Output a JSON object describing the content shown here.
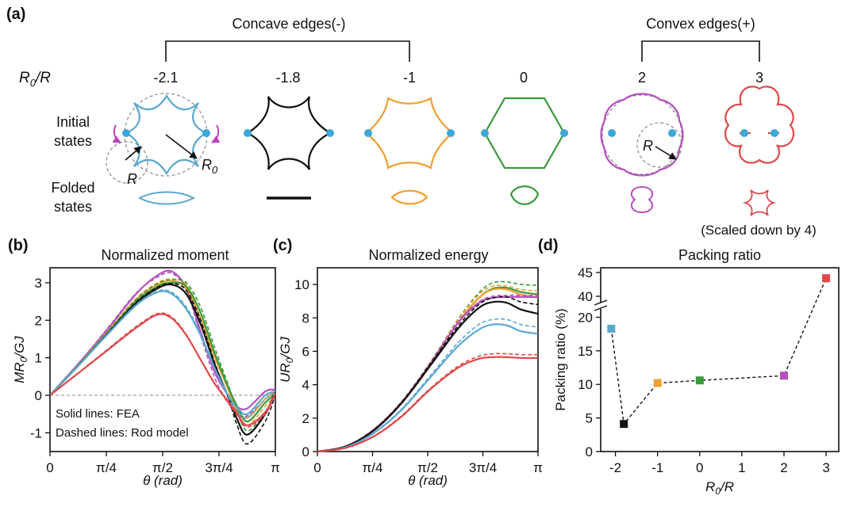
{
  "panel_a": {
    "label": "(a)",
    "groups": [
      {
        "label": "Concave edges(-)"
      },
      {
        "label": "Convex edges(+)"
      }
    ],
    "ratio_label": "R0/R",
    "ratio_main": "R",
    "ratio_sub": "0",
    "ratio_tail": "/R",
    "ratios": [
      "-2.1",
      "-1.8",
      "-1",
      "0",
      "2",
      "3"
    ],
    "row_initial": [
      "Initial",
      "states"
    ],
    "row_folded": [
      "Folded",
      "states"
    ],
    "annot_R": "R",
    "annot_R0_main": "R",
    "annot_R0_sub": "0",
    "annot_convex_R": "R",
    "scaled_note": "(Scaled down by 4)",
    "colors": [
      "#5aa8d0",
      "#111111",
      "#f0a030",
      "#3a9a3a",
      "#b550c0",
      "#e04848"
    ],
    "accent_magenta": "#c040c0",
    "dot_color": "#3aa8d8"
  },
  "chart_data": [
    {
      "id": "b",
      "type": "line",
      "label": "(b)",
      "title": "Normalized moment",
      "xlabel": "θ (rad)",
      "ylabel_main": "MR",
      "ylabel_sub": "0",
      "ylabel_tail": "/GJ",
      "x_ticks": [
        "0",
        "π/4",
        "π/2",
        "3π/4",
        "π"
      ],
      "xlim": [
        0,
        3.1416
      ],
      "ylim": [
        -1.5,
        3.4
      ],
      "y_ticks": [
        "3",
        "2",
        "1",
        "0",
        "-1"
      ],
      "legend_notes": [
        "Solid lines: FEA",
        "Dashed lines: Rod model"
      ],
      "series": [
        {
          "color": "#b550c0",
          "x": [
            0,
            0.4,
            0.8,
            1.2,
            1.5,
            1.7,
            1.9,
            2.1,
            2.3,
            2.5,
            2.6,
            2.75,
            3.0,
            3.14
          ],
          "solid": [
            0,
            0.85,
            1.75,
            2.7,
            3.2,
            3.3,
            2.85,
            1.7,
            0.6,
            -0.05,
            -0.3,
            -0.35,
            0.1,
            0.15
          ],
          "dashed": [
            0,
            0.85,
            1.78,
            2.72,
            3.15,
            3.25,
            2.8,
            1.6,
            0.45,
            -0.25,
            -0.5,
            -0.55,
            -0.1,
            0.1
          ]
        },
        {
          "color": "#f0a030",
          "x": [
            0,
            0.4,
            0.8,
            1.2,
            1.5,
            1.7,
            1.9,
            2.1,
            2.3,
            2.5,
            2.6,
            2.75,
            3.0,
            3.14
          ],
          "solid": [
            0,
            0.82,
            1.68,
            2.55,
            2.95,
            3.05,
            2.85,
            2.05,
            1.0,
            0.1,
            -0.35,
            -0.6,
            -0.1,
            0.1
          ],
          "dashed": [
            0,
            0.83,
            1.7,
            2.58,
            3.0,
            3.1,
            2.95,
            2.2,
            1.1,
            0.05,
            -0.45,
            -0.8,
            -0.3,
            0.0
          ]
        },
        {
          "color": "#3a9a3a",
          "x": [
            0,
            0.4,
            0.8,
            1.2,
            1.5,
            1.7,
            1.9,
            2.1,
            2.3,
            2.5,
            2.6,
            2.75,
            3.0,
            3.14
          ],
          "solid": [
            0,
            0.81,
            1.65,
            2.5,
            2.9,
            3.0,
            2.9,
            2.2,
            1.1,
            0.15,
            -0.25,
            -0.7,
            -0.2,
            0.05
          ],
          "dashed": [
            0,
            0.82,
            1.68,
            2.55,
            2.98,
            3.08,
            3.0,
            2.35,
            1.25,
            0.2,
            -0.35,
            -0.95,
            -0.45,
            0.0
          ]
        },
        {
          "color": "#111111",
          "x": [
            0,
            0.4,
            0.8,
            1.2,
            1.5,
            1.7,
            1.9,
            2.1,
            2.3,
            2.5,
            2.6,
            2.75,
            3.0,
            3.14
          ],
          "solid": [
            0,
            0.8,
            1.63,
            2.45,
            2.85,
            2.95,
            2.7,
            1.9,
            0.8,
            -0.1,
            -0.6,
            -1.05,
            -0.5,
            0.1
          ],
          "dashed": [
            0,
            0.8,
            1.65,
            2.48,
            2.88,
            2.98,
            2.8,
            2.0,
            0.85,
            -0.15,
            -0.75,
            -1.3,
            -0.7,
            0.0
          ]
        },
        {
          "color": "#5aa8d0",
          "x": [
            0,
            0.4,
            0.8,
            1.2,
            1.5,
            1.7,
            1.9,
            2.1,
            2.3,
            2.5,
            2.6,
            2.75,
            3.0,
            3.14
          ],
          "solid": [
            0,
            0.8,
            1.62,
            2.4,
            2.75,
            2.7,
            2.3,
            1.6,
            0.7,
            -0.05,
            -0.3,
            -0.5,
            0.0,
            0.1
          ],
          "dashed": [
            0,
            0.8,
            1.63,
            2.42,
            2.78,
            2.75,
            2.35,
            1.65,
            0.7,
            -0.1,
            -0.4,
            -0.6,
            -0.1,
            0.05
          ]
        },
        {
          "color": "#e04848",
          "x": [
            0,
            0.4,
            0.8,
            1.2,
            1.5,
            1.7,
            1.9,
            2.1,
            2.3,
            2.5,
            2.6,
            2.75,
            3.0,
            3.14
          ],
          "solid": [
            0,
            0.6,
            1.2,
            1.8,
            2.15,
            2.05,
            1.6,
            0.95,
            0.3,
            -0.2,
            -0.45,
            -0.8,
            -0.45,
            0.05
          ],
          "dashed": [
            0,
            0.6,
            1.22,
            1.83,
            2.18,
            2.08,
            1.62,
            0.95,
            0.3,
            -0.25,
            -0.5,
            -0.85,
            -0.5,
            0.0
          ]
        }
      ]
    },
    {
      "id": "c",
      "type": "line",
      "label": "(c)",
      "title": "Normalized energy",
      "xlabel": "θ (rad)",
      "ylabel_main": "UR",
      "ylabel_sub": "0",
      "ylabel_tail": "/GJ",
      "x_ticks": [
        "0",
        "π/4",
        "π/2",
        "3π/4",
        "π"
      ],
      "xlim": [
        0,
        3.1416
      ],
      "ylim": [
        0,
        11
      ],
      "y_ticks": [
        "10",
        "8",
        "6",
        "4",
        "2",
        "0"
      ],
      "series": [
        {
          "color": "#3a9a3a",
          "x": [
            0,
            0.4,
            0.8,
            1.2,
            1.6,
            2.0,
            2.3,
            2.5,
            2.7,
            2.9,
            3.14
          ],
          "solid": [
            0,
            0.3,
            1.3,
            2.95,
            5.2,
            7.7,
            9.2,
            9.75,
            9.8,
            9.55,
            9.4
          ],
          "dashed": [
            0,
            0.32,
            1.33,
            3.0,
            5.3,
            7.9,
            9.5,
            10.1,
            10.15,
            10.0,
            9.95
          ]
        },
        {
          "color": "#f0a030",
          "x": [
            0,
            0.4,
            0.8,
            1.2,
            1.6,
            2.0,
            2.3,
            2.5,
            2.7,
            2.9,
            3.14
          ],
          "solid": [
            0,
            0.3,
            1.3,
            2.95,
            5.2,
            7.7,
            9.2,
            9.7,
            9.7,
            9.4,
            9.2
          ],
          "dashed": [
            0,
            0.32,
            1.33,
            3.0,
            5.3,
            7.85,
            9.4,
            9.9,
            9.9,
            9.7,
            9.6
          ]
        },
        {
          "color": "#b550c0",
          "x": [
            0,
            0.4,
            0.8,
            1.2,
            1.6,
            2.0,
            2.3,
            2.5,
            2.7,
            2.9,
            3.14
          ],
          "solid": [
            0,
            0.3,
            1.3,
            2.95,
            5.2,
            7.7,
            8.9,
            9.2,
            9.25,
            9.25,
            9.25
          ],
          "dashed": [
            0,
            0.31,
            1.31,
            2.97,
            5.25,
            7.75,
            8.95,
            9.3,
            9.35,
            9.35,
            9.35
          ]
        },
        {
          "color": "#111111",
          "x": [
            0,
            0.4,
            0.8,
            1.2,
            1.6,
            2.0,
            2.3,
            2.5,
            2.7,
            2.9,
            3.14
          ],
          "solid": [
            0,
            0.3,
            1.25,
            2.9,
            5.1,
            7.35,
            8.6,
            8.95,
            8.9,
            8.5,
            8.25
          ],
          "dashed": [
            0,
            0.31,
            1.28,
            2.95,
            5.2,
            7.5,
            8.8,
            9.2,
            9.25,
            8.95,
            8.8
          ]
        },
        {
          "color": "#5aa8d0",
          "x": [
            0,
            0.4,
            0.8,
            1.2,
            1.6,
            2.0,
            2.3,
            2.5,
            2.7,
            2.9,
            3.14
          ],
          "solid": [
            0,
            0.25,
            1.1,
            2.5,
            4.4,
            6.3,
            7.3,
            7.6,
            7.55,
            7.2,
            7.05
          ],
          "dashed": [
            0,
            0.26,
            1.12,
            2.55,
            4.5,
            6.5,
            7.6,
            7.9,
            7.9,
            7.6,
            7.45
          ]
        },
        {
          "color": "#e04848",
          "x": [
            0,
            0.4,
            0.8,
            1.2,
            1.6,
            2.0,
            2.3,
            2.5,
            2.7,
            2.9,
            3.14
          ],
          "solid": [
            0,
            0.22,
            0.9,
            2.1,
            3.7,
            5.0,
            5.55,
            5.65,
            5.65,
            5.6,
            5.6
          ],
          "dashed": [
            0,
            0.22,
            0.92,
            2.15,
            3.75,
            5.1,
            5.7,
            5.85,
            5.85,
            5.8,
            5.8
          ]
        }
      ]
    },
    {
      "id": "d",
      "type": "scatter",
      "label": "(d)",
      "title": "Packing ratio",
      "xlabel_main": "R",
      "xlabel_sub": "0",
      "xlabel_tail": "/R",
      "ylabel": "Packing ratio (%)",
      "x_ticks": [
        "-2",
        "-1",
        "0",
        "1",
        "2",
        "3"
      ],
      "xlim": [
        -2.35,
        3.3
      ],
      "y_lower_ticks": [
        "0",
        "5",
        "10",
        "15",
        "20"
      ],
      "y_upper_ticks": [
        "40",
        "45"
      ],
      "y_break": true,
      "points": [
        {
          "x": -2.1,
          "y": 18.3,
          "color": "#5aa8d0"
        },
        {
          "x": -1.8,
          "y": 4.1,
          "color": "#111111"
        },
        {
          "x": -1.0,
          "y": 10.2,
          "color": "#f0a030"
        },
        {
          "x": 0.0,
          "y": 10.6,
          "color": "#3a9a3a"
        },
        {
          "x": 2.0,
          "y": 11.3,
          "color": "#b550c0"
        },
        {
          "x": 3.0,
          "y": 43.8,
          "color": "#e04848"
        }
      ]
    }
  ]
}
